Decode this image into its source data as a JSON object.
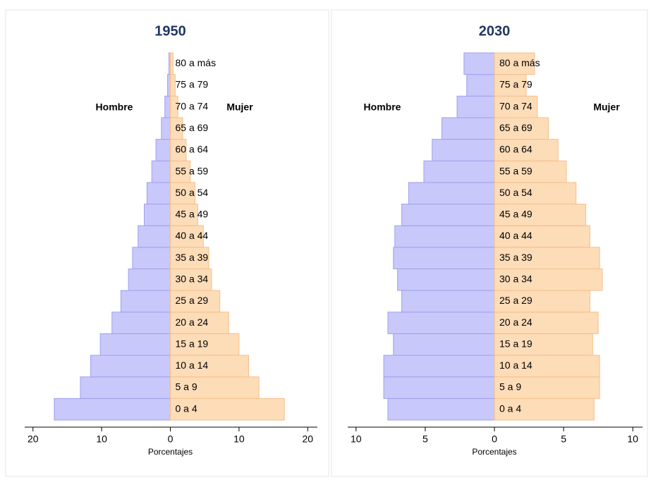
{
  "chart_data": [
    {
      "type": "pyramid",
      "title": "1950",
      "categories": [
        "0 a 4",
        "5 a 9",
        "10 a 14",
        "15 a 19",
        "20 a 24",
        "25 a 29",
        "30 a 34",
        "35 a 39",
        "40 a 44",
        "45 a 49",
        "50 a 54",
        "55 a 59",
        "60 a 64",
        "65 a 69",
        "70 a 74",
        "75 a 79",
        "80 a más"
      ],
      "series": [
        {
          "name": "Hombre",
          "color": "#c8c8fa",
          "values": [
            -16.9,
            -13.1,
            -11.6,
            -10.2,
            -8.5,
            -7.2,
            -6.1,
            -5.5,
            -4.7,
            -3.8,
            -3.4,
            -2.7,
            -2.1,
            -1.3,
            -0.8,
            -0.4,
            -0.2
          ]
        },
        {
          "name": "Mujer",
          "color": "#fddcb8",
          "values": [
            16.6,
            12.9,
            11.4,
            10.0,
            8.5,
            7.2,
            6.0,
            5.6,
            4.8,
            4.0,
            3.6,
            2.9,
            2.3,
            1.8,
            1.1,
            0.7,
            0.4
          ]
        }
      ],
      "xlim": [
        -21,
        21
      ],
      "xticks": [
        {
          "value": -20,
          "label": "20"
        },
        {
          "value": -10,
          "label": "10"
        },
        0,
        10,
        20
      ],
      "xlabel": "Porcentajes"
    },
    {
      "type": "pyramid",
      "title": "2030",
      "categories": [
        "0 a 4",
        "5 a 9",
        "10 a 14",
        "15 a 19",
        "20 a 24",
        "25 a 29",
        "30 a 34",
        "35 a 39",
        "40 a 44",
        "45 a 49",
        "50 a 54",
        "55 a 59",
        "60 a 64",
        "65 a 69",
        "70 a 74",
        "75 a 79",
        "80 a más"
      ],
      "series": [
        {
          "name": "Hombre",
          "color": "#c8c8fa",
          "values": [
            -7.7,
            -8.0,
            -8.0,
            -7.3,
            -7.7,
            -6.7,
            -7.0,
            -7.3,
            -7.2,
            -6.7,
            -6.2,
            -5.1,
            -4.5,
            -3.8,
            -2.7,
            -2.0,
            -2.2
          ]
        },
        {
          "name": "Mujer",
          "color": "#fddcb8",
          "values": [
            7.2,
            7.6,
            7.6,
            7.1,
            7.5,
            6.9,
            7.8,
            7.6,
            6.9,
            6.6,
            5.9,
            5.2,
            4.6,
            3.9,
            3.1,
            2.3,
            2.9
          ]
        }
      ],
      "xlim": [
        -10.5,
        10.5
      ],
      "xticks": [
        {
          "value": -10,
          "label": "10"
        },
        {
          "value": -5,
          "label": "5"
        },
        0,
        5,
        10
      ],
      "xlabel": "Porcentajes"
    }
  ]
}
